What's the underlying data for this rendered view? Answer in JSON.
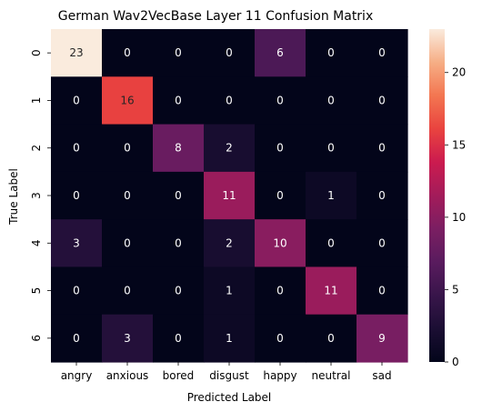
{
  "chart_data": {
    "type": "heatmap",
    "title": "German Wav2VecBase Layer 11 Confusion Matrix",
    "xlabel": "Predicted Label",
    "ylabel": "True Label",
    "x_categories": [
      "angry",
      "anxious",
      "bored",
      "disgust",
      "happy",
      "neutral",
      "sad"
    ],
    "y_categories": [
      "0",
      "1",
      "2",
      "3",
      "4",
      "5",
      "6"
    ],
    "matrix": [
      [
        23,
        0,
        0,
        0,
        6,
        0,
        0
      ],
      [
        0,
        16,
        0,
        0,
        0,
        0,
        0
      ],
      [
        0,
        0,
        8,
        2,
        0,
        0,
        0
      ],
      [
        0,
        0,
        0,
        11,
        0,
        1,
        0
      ],
      [
        3,
        0,
        0,
        2,
        10,
        0,
        0
      ],
      [
        0,
        0,
        0,
        1,
        0,
        11,
        0
      ],
      [
        0,
        3,
        0,
        1,
        0,
        0,
        9
      ]
    ],
    "colorbar": {
      "min": 0,
      "max": 23,
      "ticks": [
        0,
        5,
        10,
        15,
        20
      ]
    },
    "colormap": "rocket"
  }
}
